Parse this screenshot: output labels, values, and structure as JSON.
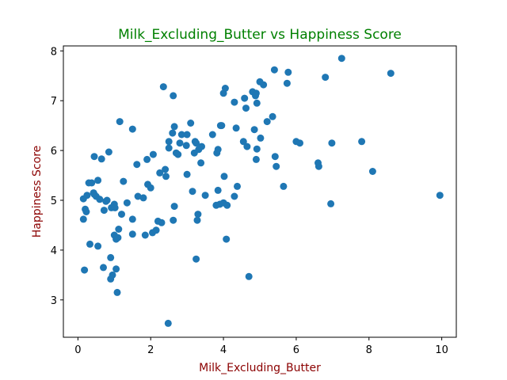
{
  "colors": {
    "title": "#008000",
    "axis_label": "#8b0000",
    "point": "#1f77b4",
    "axes": "#000000",
    "background": "#ffffff"
  },
  "chart_data": {
    "type": "scatter",
    "title": "Milk_Excluding_Butter vs Happiness Score",
    "xlabel": "Milk_Excluding_Butter",
    "ylabel": "Happiness Score",
    "xlim": [
      -0.4,
      10.4
    ],
    "ylim": [
      2.25,
      8.1
    ],
    "xticks": [
      0,
      2,
      4,
      6,
      8,
      10
    ],
    "yticks": [
      3,
      4,
      5,
      6,
      7,
      8
    ],
    "grid": false,
    "points": [
      [
        0.15,
        5.03
      ],
      [
        0.15,
        4.62
      ],
      [
        0.18,
        3.6
      ],
      [
        0.2,
        4.82
      ],
      [
        0.23,
        4.77
      ],
      [
        0.25,
        5.1
      ],
      [
        0.3,
        5.35
      ],
      [
        0.33,
        4.12
      ],
      [
        0.38,
        5.35
      ],
      [
        0.43,
        5.15
      ],
      [
        0.45,
        5.88
      ],
      [
        0.45,
        5.12
      ],
      [
        0.5,
        5.08
      ],
      [
        0.55,
        4.08
      ],
      [
        0.55,
        5.4
      ],
      [
        0.6,
        5.02
      ],
      [
        0.65,
        5.83
      ],
      [
        0.7,
        3.65
      ],
      [
        0.72,
        4.8
      ],
      [
        0.77,
        4.98
      ],
      [
        0.8,
        5.0
      ],
      [
        0.85,
        5.97
      ],
      [
        0.9,
        3.42
      ],
      [
        0.9,
        3.85
      ],
      [
        0.92,
        4.85
      ],
      [
        0.95,
        3.5
      ],
      [
        1.0,
        4.3
      ],
      [
        1.0,
        4.92
      ],
      [
        1.02,
        4.85
      ],
      [
        1.05,
        4.22
      ],
      [
        1.05,
        3.62
      ],
      [
        1.08,
        3.15
      ],
      [
        1.1,
        4.25
      ],
      [
        1.12,
        4.42
      ],
      [
        1.15,
        6.58
      ],
      [
        1.2,
        4.72
      ],
      [
        1.25,
        5.38
      ],
      [
        1.35,
        4.95
      ],
      [
        1.5,
        4.32
      ],
      [
        1.5,
        4.62
      ],
      [
        1.5,
        6.43
      ],
      [
        1.62,
        5.72
      ],
      [
        1.65,
        5.08
      ],
      [
        1.8,
        5.05
      ],
      [
        1.85,
        4.3
      ],
      [
        1.9,
        5.82
      ],
      [
        1.92,
        5.32
      ],
      [
        2.0,
        5.25
      ],
      [
        2.05,
        4.35
      ],
      [
        2.07,
        5.92
      ],
      [
        2.15,
        4.4
      ],
      [
        2.2,
        4.58
      ],
      [
        2.25,
        5.55
      ],
      [
        2.3,
        4.55
      ],
      [
        2.35,
        7.28
      ],
      [
        2.4,
        5.62
      ],
      [
        2.42,
        5.48
      ],
      [
        2.48,
        2.53
      ],
      [
        2.5,
        6.05
      ],
      [
        2.5,
        6.18
      ],
      [
        2.6,
        6.35
      ],
      [
        2.62,
        7.1
      ],
      [
        2.62,
        4.6
      ],
      [
        2.65,
        6.48
      ],
      [
        2.65,
        4.88
      ],
      [
        2.7,
        5.95
      ],
      [
        2.75,
        5.92
      ],
      [
        2.8,
        6.15
      ],
      [
        2.85,
        6.32
      ],
      [
        2.98,
        6.1
      ],
      [
        3.0,
        6.32
      ],
      [
        3.0,
        5.52
      ],
      [
        3.1,
        6.55
      ],
      [
        3.15,
        5.18
      ],
      [
        3.2,
        5.95
      ],
      [
        3.22,
        6.18
      ],
      [
        3.25,
        6.15
      ],
      [
        3.25,
        3.82
      ],
      [
        3.28,
        4.6
      ],
      [
        3.3,
        4.72
      ],
      [
        3.32,
        6.02
      ],
      [
        3.38,
        5.75
      ],
      [
        3.4,
        6.08
      ],
      [
        3.5,
        5.1
      ],
      [
        3.7,
        6.32
      ],
      [
        3.8,
        4.9
      ],
      [
        3.82,
        5.95
      ],
      [
        3.85,
        6.02
      ],
      [
        3.85,
        5.2
      ],
      [
        3.9,
        4.92
      ],
      [
        3.92,
        6.5
      ],
      [
        3.95,
        6.5
      ],
      [
        4.0,
        7.15
      ],
      [
        4.0,
        4.95
      ],
      [
        4.02,
        5.48
      ],
      [
        4.05,
        7.25
      ],
      [
        4.08,
        4.22
      ],
      [
        4.1,
        4.9
      ],
      [
        4.3,
        6.97
      ],
      [
        4.3,
        5.08
      ],
      [
        4.35,
        6.45
      ],
      [
        4.38,
        5.28
      ],
      [
        4.55,
        6.18
      ],
      [
        4.58,
        7.05
      ],
      [
        4.62,
        6.85
      ],
      [
        4.65,
        6.08
      ],
      [
        4.7,
        3.47
      ],
      [
        4.8,
        7.18
      ],
      [
        4.85,
        6.42
      ],
      [
        4.88,
        7.1
      ],
      [
        4.9,
        5.82
      ],
      [
        4.9,
        7.15
      ],
      [
        4.92,
        6.95
      ],
      [
        4.92,
        6.03
      ],
      [
        5.0,
        7.38
      ],
      [
        5.02,
        6.25
      ],
      [
        5.1,
        7.32
      ],
      [
        5.2,
        6.58
      ],
      [
        5.35,
        6.68
      ],
      [
        5.4,
        7.62
      ],
      [
        5.42,
        5.88
      ],
      [
        5.45,
        5.68
      ],
      [
        5.65,
        5.28
      ],
      [
        5.75,
        7.35
      ],
      [
        5.78,
        7.57
      ],
      [
        6.0,
        6.18
      ],
      [
        6.1,
        6.15
      ],
      [
        6.6,
        5.75
      ],
      [
        6.62,
        5.68
      ],
      [
        6.8,
        7.47
      ],
      [
        6.95,
        4.93
      ],
      [
        6.98,
        6.15
      ],
      [
        7.25,
        7.85
      ],
      [
        7.8,
        6.18
      ],
      [
        8.1,
        5.58
      ],
      [
        8.6,
        7.55
      ],
      [
        9.95,
        5.1
      ]
    ]
  }
}
